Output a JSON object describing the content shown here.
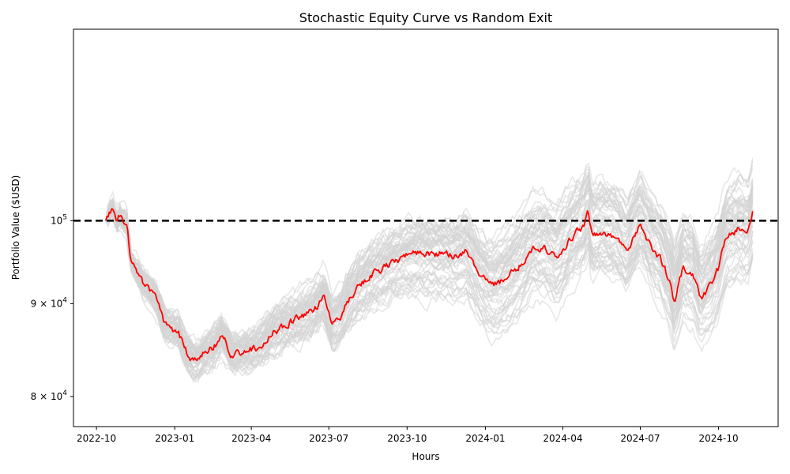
{
  "chart_data": {
    "type": "line",
    "title": "Stochastic Equity Curve vs Random Exit",
    "xlabel": "Hours",
    "ylabel": "Portfolio Value ($USD)",
    "y_scale": "log",
    "x_ticks": [
      "2022-10",
      "2023-01",
      "2023-04",
      "2023-07",
      "2023-10",
      "2024-01",
      "2024-04",
      "2024-07",
      "2024-10"
    ],
    "y_ticks": [
      {
        "value": 100000,
        "base": "10",
        "exp": "5"
      },
      {
        "value": 90000,
        "base": "9 × 10",
        "exp": "4"
      },
      {
        "value": 80000,
        "base": "8 × 10",
        "exp": "4"
      }
    ],
    "xlim": [
      "2022-09-04",
      "2024-12-10"
    ],
    "ylim": [
      77000,
      127500
    ],
    "reference_line": {
      "value": 100000,
      "color": "#000000",
      "style": "dashed"
    },
    "highlight_series": {
      "color": "#ff0000",
      "x": [
        "2022-10-12",
        "2022-10-20",
        "2022-10-25",
        "2022-10-28",
        "2022-11-01",
        "2022-11-06",
        "2022-11-10",
        "2022-11-15",
        "2022-11-25",
        "2022-12-10",
        "2022-12-20",
        "2023-01-05",
        "2023-01-15",
        "2023-01-25",
        "2023-02-05",
        "2023-02-15",
        "2023-02-25",
        "2023-03-10",
        "2023-03-25",
        "2023-04-10",
        "2023-04-25",
        "2023-05-10",
        "2023-05-25",
        "2023-06-10",
        "2023-06-25",
        "2023-07-05",
        "2023-07-15",
        "2023-07-25",
        "2023-08-05",
        "2023-08-20",
        "2023-09-05",
        "2023-09-25",
        "2023-10-15",
        "2023-11-01",
        "2023-11-15",
        "2023-11-25",
        "2023-12-10",
        "2023-12-25",
        "2024-01-10",
        "2024-01-25",
        "2024-02-10",
        "2024-02-25",
        "2024-03-10",
        "2024-03-25",
        "2024-04-10",
        "2024-04-25",
        "2024-05-01",
        "2024-05-05",
        "2024-05-15",
        "2024-06-01",
        "2024-06-15",
        "2024-07-01",
        "2024-07-15",
        "2024-07-25",
        "2024-08-05",
        "2024-08-10",
        "2024-08-20",
        "2024-09-01",
        "2024-09-10",
        "2024-09-20",
        "2024-10-01",
        "2024-10-10",
        "2024-10-25",
        "2024-11-05",
        "2024-11-10"
      ],
      "y": [
        100000,
        101800,
        99600,
        100500,
        100000,
        99600,
        95000,
        94200,
        92400,
        90600,
        87600,
        86800,
        84600,
        83700,
        84400,
        85100,
        86400,
        84200,
        84600,
        85200,
        86800,
        87500,
        88300,
        89000,
        90700,
        87800,
        88700,
        90600,
        92100,
        93300,
        94300,
        95400,
        96100,
        95800,
        96000,
        95500,
        96300,
        93500,
        92000,
        93000,
        94500,
        96500,
        96600,
        95200,
        97800,
        99200,
        101100,
        98200,
        98500,
        98000,
        96000,
        99500,
        96500,
        95200,
        92500,
        90200,
        94200,
        93500,
        90500,
        92000,
        94200,
        98000,
        99000,
        98800,
        101200
      ]
    }
  }
}
